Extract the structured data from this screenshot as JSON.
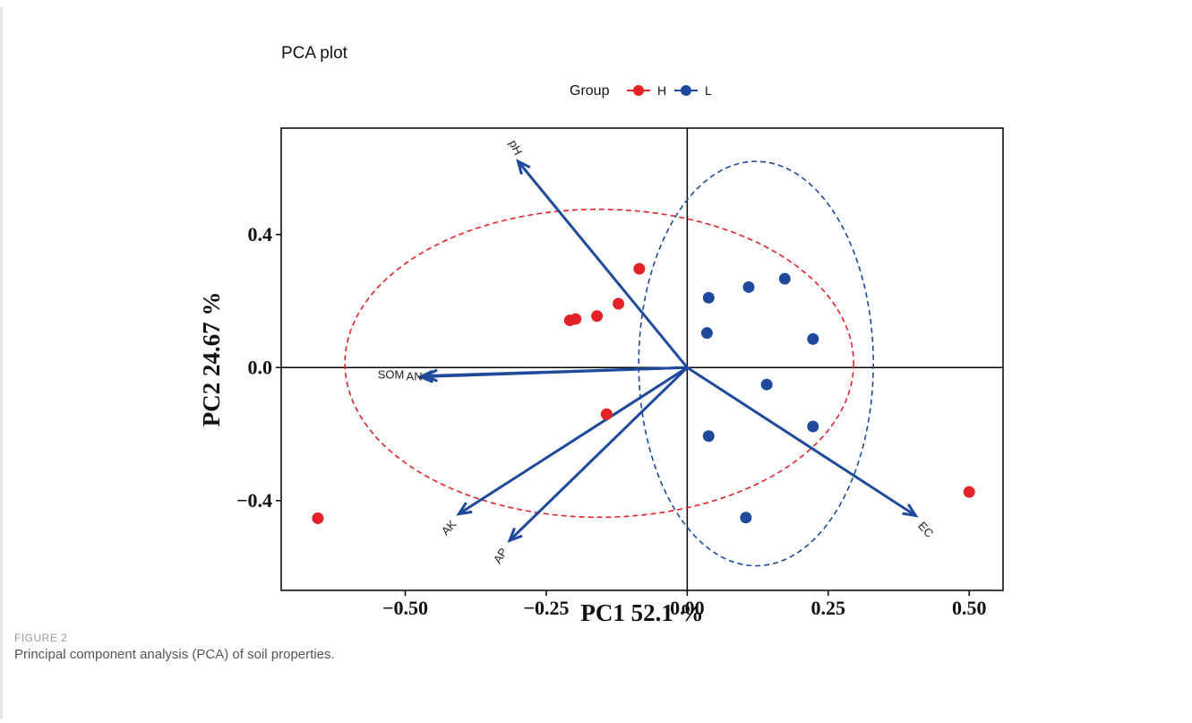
{
  "figure": {
    "label": "FIGURE 2",
    "caption": "Principal component analysis (PCA) of soil properties."
  },
  "chart_data": {
    "type": "scatter",
    "title": "PCA plot",
    "xlabel": "PC1 52.1  %",
    "ylabel": "PC2 24.67  %",
    "xlim": [
      -0.72,
      0.56
    ],
    "ylim": [
      -0.67,
      0.72
    ],
    "x_ticks": [
      -0.5,
      -0.25,
      0.0,
      0.25,
      0.5
    ],
    "x_tick_labels": [
      "−0.50",
      "−0.25",
      "0.00",
      "0.25",
      "0.50"
    ],
    "y_ticks": [
      -0.4,
      0.0,
      0.4
    ],
    "y_tick_labels": [
      "−0.4",
      "0.0",
      "0.4"
    ],
    "grid": false,
    "legend": {
      "title": "Group",
      "position": "top"
    },
    "colors": {
      "H": "#e32227",
      "L": "#1f4a9c",
      "arrow": "#1f4a9c"
    },
    "series": [
      {
        "name": "H",
        "color": "#e32227",
        "points": [
          {
            "x": -0.085,
            "y": 0.297
          },
          {
            "x": -0.122,
            "y": 0.192
          },
          {
            "x": -0.16,
            "y": 0.155
          },
          {
            "x": -0.198,
            "y": 0.146
          },
          {
            "x": -0.208,
            "y": 0.142
          },
          {
            "x": -0.143,
            "y": -0.14
          },
          {
            "x": -0.655,
            "y": -0.453
          },
          {
            "x": 0.5,
            "y": -0.374
          }
        ],
        "ellipse": {
          "cx": -0.156,
          "cy": 0.013,
          "rx": 0.451,
          "ry": 0.463
        }
      },
      {
        "name": "L",
        "color": "#1f4a9c",
        "points": [
          {
            "x": 0.038,
            "y": 0.21
          },
          {
            "x": 0.109,
            "y": 0.242
          },
          {
            "x": 0.173,
            "y": 0.267
          },
          {
            "x": 0.035,
            "y": 0.104
          },
          {
            "x": 0.223,
            "y": 0.086
          },
          {
            "x": 0.141,
            "y": -0.051
          },
          {
            "x": 0.038,
            "y": -0.206
          },
          {
            "x": 0.223,
            "y": -0.177
          },
          {
            "x": 0.104,
            "y": -0.451
          }
        ],
        "ellipse": {
          "cx": 0.122,
          "cy": 0.012,
          "rx": 0.208,
          "ry": 0.608
        }
      }
    ],
    "loadings": [
      {
        "name": "pH",
        "x": -0.3,
        "y": 0.62
      },
      {
        "name": "SOM",
        "x": -0.473,
        "y": -0.028
      },
      {
        "name": "AN",
        "x": -0.465,
        "y": -0.025
      },
      {
        "name": "AK",
        "x": -0.405,
        "y": -0.44
      },
      {
        "name": "AP",
        "x": -0.315,
        "y": -0.52
      },
      {
        "name": "EC",
        "x": 0.405,
        "y": -0.445
      }
    ]
  }
}
